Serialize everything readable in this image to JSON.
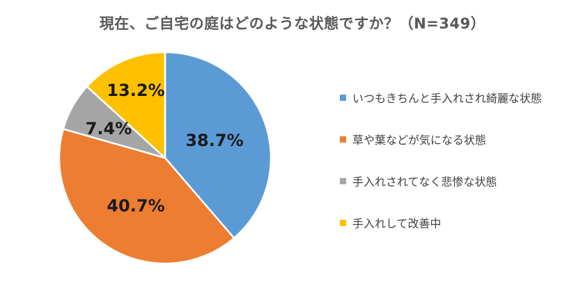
{
  "chart_data": {
    "type": "pie",
    "title": "現在、ご自宅の庭はどのような状態ですか？（N=349）",
    "start_angle_deg": 0,
    "direction": "clockwise",
    "legend_position": "right",
    "slices": [
      {
        "label": "いつもきちんと手入れされ綺麗な状態",
        "value": 38.7,
        "display": "38.7%",
        "color": "#5B9BD5"
      },
      {
        "label": "草や葉などが気になる状態",
        "value": 40.7,
        "display": "40.7%",
        "color": "#ED7D31"
      },
      {
        "label": "手入れされてなく悲惨な状態",
        "value": 7.4,
        "display": "7.4%",
        "color": "#A5A5A5"
      },
      {
        "label": "手入れして改善中",
        "value": 13.2,
        "display": "13.2%",
        "color": "#FFC000"
      }
    ]
  }
}
